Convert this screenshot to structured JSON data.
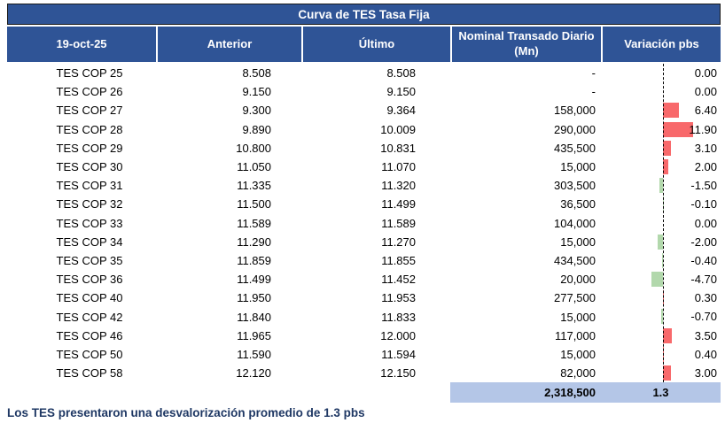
{
  "title": "Curva de TES Tasa Fija",
  "columns": {
    "date": "19-oct-25",
    "anterior": "Anterior",
    "ultimo": "Último",
    "nominal": "Nominal Transado Diario (Mn)",
    "variacion": "Variación pbs"
  },
  "rows": [
    {
      "name": "TES COP 25",
      "anterior": "8.508",
      "ultimo": "8.508",
      "nominal": "-",
      "variacion": "0.00",
      "variacion_value": 0.0
    },
    {
      "name": "TES COP 26",
      "anterior": "9.150",
      "ultimo": "9.150",
      "nominal": "-",
      "variacion": "0.00",
      "variacion_value": 0.0
    },
    {
      "name": "TES COP 27",
      "anterior": "9.300",
      "ultimo": "9.364",
      "nominal": "158,000",
      "variacion": "6.40",
      "variacion_value": 6.4
    },
    {
      "name": "TES COP 28",
      "anterior": "9.890",
      "ultimo": "10.009",
      "nominal": "290,000",
      "variacion": "11.90",
      "variacion_value": 11.9
    },
    {
      "name": "TES COP 29",
      "anterior": "10.800",
      "ultimo": "10.831",
      "nominal": "435,500",
      "variacion": "3.10",
      "variacion_value": 3.1
    },
    {
      "name": "TES COP 30",
      "anterior": "11.050",
      "ultimo": "11.070",
      "nominal": "15,000",
      "variacion": "2.00",
      "variacion_value": 2.0
    },
    {
      "name": "TES COP 31",
      "anterior": "11.335",
      "ultimo": "11.320",
      "nominal": "303,500",
      "variacion": "-1.50",
      "variacion_value": -1.5
    },
    {
      "name": "TES COP 32",
      "anterior": "11.500",
      "ultimo": "11.499",
      "nominal": "36,500",
      "variacion": "-0.10",
      "variacion_value": -0.1
    },
    {
      "name": "TES COP 33",
      "anterior": "11.589",
      "ultimo": "11.589",
      "nominal": "104,000",
      "variacion": "0.00",
      "variacion_value": 0.0
    },
    {
      "name": "TES COP 34",
      "anterior": "11.290",
      "ultimo": "11.270",
      "nominal": "15,000",
      "variacion": "-2.00",
      "variacion_value": -2.0
    },
    {
      "name": "TES COP 35",
      "anterior": "11.859",
      "ultimo": "11.855",
      "nominal": "434,500",
      "variacion": "-0.40",
      "variacion_value": -0.4
    },
    {
      "name": "TES COP 36",
      "anterior": "11.499",
      "ultimo": "11.452",
      "nominal": "20,000",
      "variacion": "-4.70",
      "variacion_value": -4.7
    },
    {
      "name": "TES COP 40",
      "anterior": "11.950",
      "ultimo": "11.953",
      "nominal": "277,500",
      "variacion": "0.30",
      "variacion_value": 0.3
    },
    {
      "name": "TES COP 42",
      "anterior": "11.840",
      "ultimo": "11.833",
      "nominal": "15,000",
      "variacion": "-0.70",
      "variacion_value": -0.7
    },
    {
      "name": "TES COP 46",
      "anterior": "11.965",
      "ultimo": "12.000",
      "nominal": "117,000",
      "variacion": "3.50",
      "variacion_value": 3.5
    },
    {
      "name": "TES COP 50",
      "anterior": "11.590",
      "ultimo": "11.594",
      "nominal": "15,000",
      "variacion": "0.40",
      "variacion_value": 0.4
    },
    {
      "name": "TES COP 58",
      "anterior": "12.120",
      "ultimo": "12.150",
      "nominal": "82,000",
      "variacion": "3.00",
      "variacion_value": 3.0
    }
  ],
  "total": {
    "nominal": "2,318,500",
    "variacion": "1.3"
  },
  "footer": "Los TES presentaron una desvalorización promedio de 1.3 pbs",
  "colors": {
    "header_bg": "#2F5496",
    "total_bg": "#B4C6E7",
    "positive_bar": "#F8696B",
    "negative_bar": "#B2D8AC",
    "footer_text": "#1F3864",
    "zero_line": "#000000"
  }
}
